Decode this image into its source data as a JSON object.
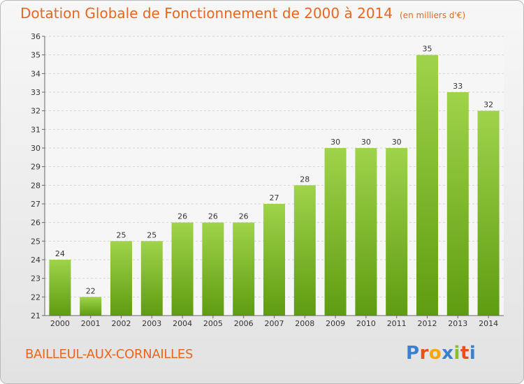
{
  "title": "Dotation Globale de Fonctionnement de 2000 à 2014",
  "unit_note": "(en milliers d'€)",
  "commune": "BAILLEUL-AUX-CORNAILLES",
  "logo": {
    "text": "Proxiti",
    "colors": [
      "#3b7fd0",
      "#e94e1b",
      "#f7a800",
      "#3b7fd0",
      "#8cbf26",
      "#e94e1b",
      "#3b7fd0"
    ]
  },
  "colors": {
    "bar_top": "#9fd34a",
    "bar_bottom": "#5f9c10",
    "accent": "#e8661d",
    "grid": "#d4d4d4"
  },
  "chart_data": {
    "type": "bar",
    "title": "Dotation Globale de Fonctionnement de 2000 à 2014",
    "ylabel": "",
    "xlabel": "",
    "ylim": [
      21,
      36
    ],
    "yticks": [
      21,
      22,
      23,
      24,
      25,
      26,
      27,
      28,
      29,
      30,
      31,
      32,
      33,
      34,
      35,
      36
    ],
    "grid": true,
    "categories": [
      "2000",
      "2001",
      "2002",
      "2003",
      "2004",
      "2005",
      "2006",
      "2007",
      "2008",
      "2009",
      "2010",
      "2011",
      "2012",
      "2013",
      "2014"
    ],
    "values": [
      24,
      22,
      25,
      25,
      26,
      26,
      26,
      27,
      28,
      30,
      30,
      30,
      35,
      33,
      32
    ]
  }
}
